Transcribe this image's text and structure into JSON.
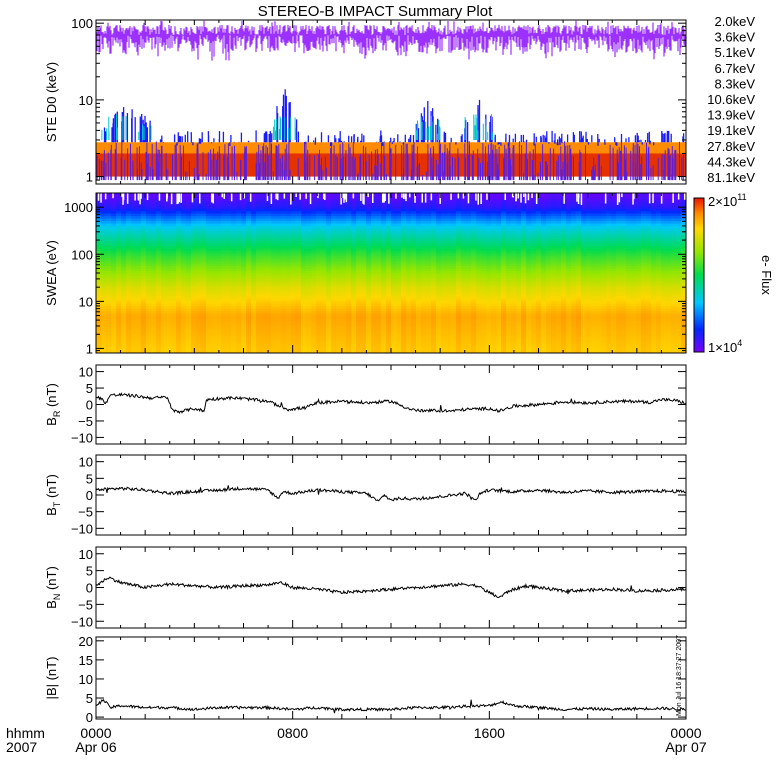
{
  "title": "STEREO-B IMPACT Summary Plot",
  "stamp": "Mon Jul 16 18:37:27 2007",
  "colorbar": {
    "label": "e- Flux",
    "max_label": [
      "2×10",
      "11"
    ],
    "min_label": [
      "1×10",
      "4"
    ]
  },
  "x_axis": {
    "left_label": [
      "hhmm",
      "2007"
    ],
    "ticks": [
      {
        "hour": 0,
        "line1": "0000",
        "line2": "Apr 06"
      },
      {
        "hour": 8,
        "line1": "0800",
        "line2": ""
      },
      {
        "hour": 16,
        "line1": "1600",
        "line2": ""
      },
      {
        "hour": 24,
        "line1": "0000",
        "line2": "Apr 07"
      }
    ],
    "range_hours": [
      0,
      24
    ]
  },
  "legend": [
    {
      "label": "2.0keV",
      "color": "#9b30ff"
    },
    {
      "label": "3.6keV",
      "color": "#5a1ee0"
    },
    {
      "label": "5.1keV",
      "color": "#1a1aff"
    },
    {
      "label": "6.7keV",
      "color": "#1e90ff"
    },
    {
      "label": "8.3keV",
      "color": "#00c8c8"
    },
    {
      "label": "10.6keV",
      "color": "#00c800"
    },
    {
      "label": "13.9keV",
      "color": "#32dc32"
    },
    {
      "label": "19.1keV",
      "color": "#b4dc00"
    },
    {
      "label": "27.8keV",
      "color": "#f0c800"
    },
    {
      "label": "44.3keV",
      "color": "#ff8c00"
    },
    {
      "label": "81.1keV",
      "color": "#e63200"
    }
  ],
  "chart_data": [
    {
      "type": "line",
      "id": "ste",
      "ylabel": "STE D0 (keV)",
      "yscale": "log",
      "ylim": [
        0.8,
        110
      ],
      "yticks": [
        {
          "v": 1,
          "label": "1"
        },
        {
          "v": 10,
          "label": "10"
        },
        {
          "v": 100,
          "label": "100"
        }
      ],
      "series": [
        {
          "legend_index": 0,
          "mean": 70,
          "spread": [
            40,
            95
          ]
        },
        {
          "legend_index": 2,
          "base": 2.5,
          "bursts_hours": [
            [
              0.2,
              2.5,
              9
            ],
            [
              7.2,
              8.2,
              16
            ],
            [
              13.0,
              14.0,
              10
            ],
            [
              15.0,
              16.2,
              12
            ]
          ]
        },
        {
          "legend_index": 9,
          "band": [
            1.0,
            2.8
          ]
        },
        {
          "legend_index": 10,
          "band": [
            1.0,
            2.0
          ]
        }
      ]
    },
    {
      "type": "heatmap",
      "id": "swea",
      "ylabel": "SWEA (eV)",
      "yscale": "log",
      "ylim": [
        0.8,
        2000
      ],
      "yticks": [
        {
          "v": 1,
          "label": "1"
        },
        {
          "v": 10,
          "label": "10"
        },
        {
          "v": 100,
          "label": "100"
        },
        {
          "v": 1000,
          "label": "1000"
        }
      ],
      "zscale": "log",
      "zlim": [
        10000.0,
        200000000000.0
      ],
      "profile_energy_eV": [
        1,
        5,
        20,
        100,
        400,
        1000,
        1700
      ],
      "profile_flux": [
        10000000000.0,
        20000000000.0,
        3000000000.0,
        100000000.0,
        3000000.0,
        60000.0,
        20000.0
      ]
    },
    {
      "type": "line",
      "id": "br",
      "ylabel": [
        "B",
        "R",
        " (nT)"
      ],
      "ylim": [
        -12,
        12
      ],
      "yticks": [
        {
          "v": -10,
          "label": "−10"
        },
        {
          "v": -5,
          "label": "−5"
        },
        {
          "v": 0,
          "label": "0"
        },
        {
          "v": 5,
          "label": "5"
        },
        {
          "v": 10,
          "label": "10"
        }
      ],
      "x": [
        0,
        0.2,
        0.4,
        0.6,
        0.8,
        1.0,
        1.6,
        2.2,
        2.9,
        3.1,
        3.4,
        4.0,
        4.4,
        4.5,
        5.2,
        5.6,
        6.0,
        7.0,
        7.8,
        8.5,
        9.0,
        10.0,
        11.0,
        12.0,
        12.8,
        13.3,
        13.8,
        14.4,
        15.0,
        16.0,
        16.4,
        17.0,
        18.0,
        19.0,
        20.0,
        21.0,
        22.0,
        22.5,
        23.0,
        23.6,
        24.0
      ],
      "y": [
        2.5,
        1.8,
        0.5,
        3.0,
        2.8,
        3.0,
        2.6,
        2.0,
        2.2,
        -1.8,
        -2.2,
        -1.2,
        -2.0,
        1.5,
        1.9,
        2.0,
        1.8,
        1.0,
        -1.5,
        -1.0,
        0.5,
        1.0,
        0.5,
        1.0,
        -1.5,
        -2.0,
        -1.8,
        -2.0,
        -1.5,
        -1.2,
        -2.0,
        -0.5,
        0.0,
        0.8,
        0.5,
        0.9,
        1.0,
        0.6,
        1.5,
        1.2,
        0.3
      ]
    },
    {
      "type": "line",
      "id": "bt",
      "ylabel": [
        "B",
        "T",
        " (nT)"
      ],
      "ylim": [
        -12,
        12
      ],
      "yticks": [
        {
          "v": -10,
          "label": "−10"
        },
        {
          "v": -5,
          "label": "−5"
        },
        {
          "v": 0,
          "label": "0"
        },
        {
          "v": 5,
          "label": "5"
        },
        {
          "v": 10,
          "label": "10"
        }
      ],
      "x": [
        0,
        1.0,
        2.0,
        3.0,
        4.0,
        5.0,
        6.0,
        7.0,
        7.4,
        7.6,
        8.0,
        9.0,
        10.0,
        11.0,
        11.5,
        11.7,
        12.0,
        12.4,
        13.0,
        14.0,
        15.0,
        15.5,
        15.6,
        16.0,
        17.0,
        18.0,
        19.0,
        20.0,
        21.0,
        22.0,
        23.0,
        24.0
      ],
      "y": [
        1.5,
        2.0,
        1.5,
        0.5,
        1.0,
        1.5,
        2.0,
        1.5,
        -1.0,
        1.0,
        0.5,
        1.5,
        1.0,
        0.5,
        -2.0,
        0.0,
        -1.5,
        -1.0,
        -1.2,
        -0.5,
        0.5,
        -1.5,
        0.5,
        1.5,
        1.0,
        1.5,
        0.8,
        1.2,
        0.8,
        1.0,
        1.2,
        1.0
      ]
    },
    {
      "type": "line",
      "id": "bn",
      "ylabel": [
        "B",
        "N",
        " (nT)"
      ],
      "ylim": [
        -12,
        12
      ],
      "yticks": [
        {
          "v": -10,
          "label": "−10"
        },
        {
          "v": -5,
          "label": "−5"
        },
        {
          "v": 0,
          "label": "0"
        },
        {
          "v": 5,
          "label": "5"
        },
        {
          "v": 10,
          "label": "10"
        }
      ],
      "x": [
        0,
        0.5,
        1.0,
        2.0,
        3.0,
        4.0,
        5.0,
        6.0,
        7.0,
        7.5,
        8.0,
        9.0,
        10.0,
        11.0,
        12.0,
        13.0,
        14.0,
        15.0,
        15.5,
        16.0,
        16.4,
        16.8,
        17.5,
        18.0,
        19.0,
        20.0,
        21.0,
        22.0,
        23.0,
        24.0
      ],
      "y": [
        0.5,
        3.0,
        1.5,
        0.0,
        1.0,
        0.5,
        0.0,
        0.5,
        0.8,
        1.5,
        0.0,
        -0.5,
        -1.5,
        -1.0,
        -0.5,
        0.0,
        0.5,
        1.0,
        0.5,
        -1.5,
        -3.0,
        -1.0,
        0.5,
        0.0,
        -1.0,
        -0.8,
        -0.5,
        -1.0,
        -0.8,
        -0.5
      ]
    },
    {
      "type": "line",
      "id": "bmag",
      "ylabel": "|B| (nT)",
      "ylim": [
        -0.5,
        21
      ],
      "yticks": [
        {
          "v": 0,
          "label": "0"
        },
        {
          "v": 5,
          "label": "5"
        },
        {
          "v": 10,
          "label": "10"
        },
        {
          "v": 15,
          "label": "15"
        },
        {
          "v": 20,
          "label": "20"
        }
      ],
      "x": [
        0,
        0.3,
        0.6,
        1.0,
        2.0,
        3.0,
        4.0,
        5.0,
        6.0,
        7.0,
        8.0,
        9.0,
        10.0,
        11.0,
        12.0,
        13.0,
        14.0,
        15.0,
        16.0,
        16.5,
        17.0,
        18.0,
        19.0,
        20.0,
        21.0,
        22.0,
        23.0,
        24.0
      ],
      "y": [
        3.0,
        4.5,
        2.5,
        3.0,
        2.5,
        2.5,
        2.0,
        2.5,
        2.5,
        2.5,
        2.0,
        2.5,
        2.0,
        2.0,
        2.0,
        2.5,
        2.5,
        2.8,
        3.0,
        4.0,
        3.0,
        2.5,
        2.0,
        2.2,
        2.0,
        2.2,
        2.3,
        2.0
      ]
    }
  ]
}
